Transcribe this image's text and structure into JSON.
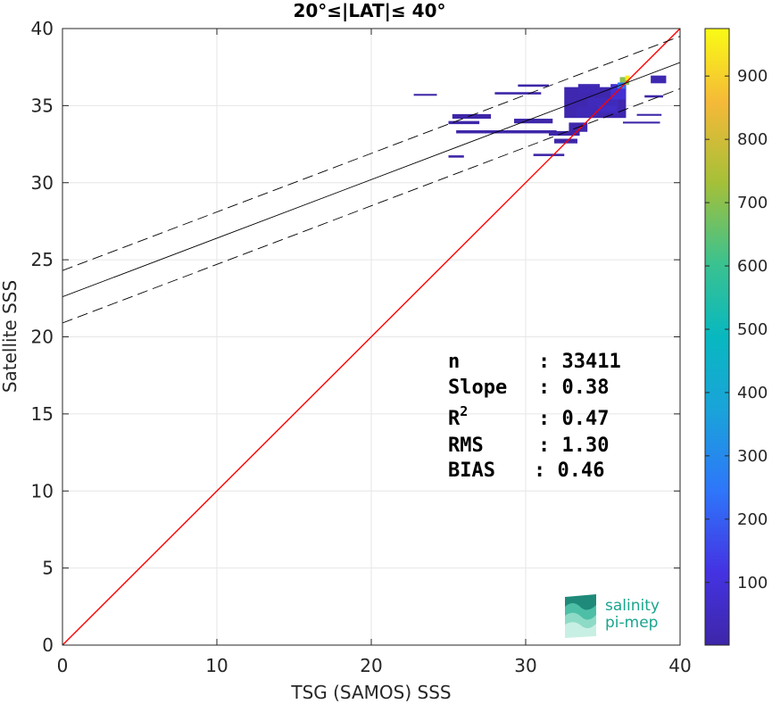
{
  "chart_data": {
    "type": "heatmap",
    "title": "20°≤|LAT|≤ 40°",
    "xlabel": "TSG (SAMOS) SSS",
    "ylabel": "Satellite SSS",
    "xlim": [
      0,
      40
    ],
    "ylim": [
      0,
      40
    ],
    "xticks": [
      "0",
      "10",
      "20",
      "30",
      "40"
    ],
    "yticks": [
      "0",
      "5",
      "10",
      "15",
      "20",
      "25",
      "30",
      "35",
      "40"
    ],
    "grid": true,
    "colorbar": {
      "min": 1,
      "max": 975,
      "ticks": [
        "100",
        "200",
        "300",
        "400",
        "500",
        "600",
        "700",
        "800",
        "900"
      ],
      "colormap": "parula"
    },
    "lines": [
      {
        "name": "1:1",
        "slope": 1.0,
        "intercept": 0.0,
        "color": "#ff0000",
        "style": "solid"
      },
      {
        "name": "fit",
        "slope": 0.38,
        "intercept": 22.6,
        "color": "#000000",
        "style": "solid"
      },
      {
        "name": "fit+",
        "slope": 0.38,
        "intercept": 24.3,
        "color": "#000000",
        "style": "dashed"
      },
      {
        "name": "fit-",
        "slope": 0.38,
        "intercept": 20.9,
        "color": "#000000",
        "style": "dashed"
      }
    ],
    "density_cells": [
      {
        "x": 34.5,
        "y": 35.2,
        "w": 4.0,
        "h": 2.0,
        "count": 15
      },
      {
        "x": 35.0,
        "y": 35.0,
        "w": 2.0,
        "h": 1.0,
        "count": 40
      },
      {
        "x": 36.0,
        "y": 35.9,
        "w": 1.0,
        "h": 1.0,
        "count": 90
      },
      {
        "x": 36.4,
        "y": 36.6,
        "w": 0.6,
        "h": 0.5,
        "count": 700
      },
      {
        "x": 36.6,
        "y": 36.8,
        "w": 0.3,
        "h": 0.3,
        "count": 950
      },
      {
        "x": 36.2,
        "y": 36.3,
        "w": 0.5,
        "h": 0.4,
        "count": 250
      },
      {
        "x": 34.0,
        "y": 34.6,
        "w": 1.5,
        "h": 0.7,
        "count": 30
      },
      {
        "x": 33.4,
        "y": 33.6,
        "w": 1.2,
        "h": 0.6,
        "count": 8
      },
      {
        "x": 32.5,
        "y": 33.2,
        "w": 2.0,
        "h": 0.3,
        "count": 3
      },
      {
        "x": 30.0,
        "y": 33.3,
        "w": 4.0,
        "h": 0.2,
        "count": 2
      },
      {
        "x": 27.0,
        "y": 33.3,
        "w": 3.0,
        "h": 0.2,
        "count": 2
      },
      {
        "x": 26.5,
        "y": 34.3,
        "w": 2.5,
        "h": 0.3,
        "count": 2
      },
      {
        "x": 30.5,
        "y": 34.0,
        "w": 2.5,
        "h": 0.3,
        "count": 3
      },
      {
        "x": 29.5,
        "y": 35.8,
        "w": 3.0,
        "h": 0.15,
        "count": 2
      },
      {
        "x": 30.5,
        "y": 36.3,
        "w": 2.0,
        "h": 0.15,
        "count": 2
      },
      {
        "x": 23.5,
        "y": 35.7,
        "w": 1.5,
        "h": 0.12,
        "count": 1
      },
      {
        "x": 26.0,
        "y": 33.9,
        "w": 2.0,
        "h": 0.2,
        "count": 1
      },
      {
        "x": 32.6,
        "y": 32.7,
        "w": 1.5,
        "h": 0.3,
        "count": 4
      },
      {
        "x": 31.5,
        "y": 31.8,
        "w": 2.0,
        "h": 0.15,
        "count": 1
      },
      {
        "x": 25.5,
        "y": 31.7,
        "w": 1.0,
        "h": 0.15,
        "count": 1
      },
      {
        "x": 38.3,
        "y": 35.6,
        "w": 1.2,
        "h": 0.15,
        "count": 2
      },
      {
        "x": 38.6,
        "y": 36.7,
        "w": 1.0,
        "h": 0.5,
        "count": 20
      },
      {
        "x": 38.0,
        "y": 34.4,
        "w": 1.6,
        "h": 0.12,
        "count": 1
      },
      {
        "x": 37.5,
        "y": 33.9,
        "w": 2.4,
        "h": 0.12,
        "count": 1
      },
      {
        "x": 35.3,
        "y": 34.8,
        "w": 1.2,
        "h": 0.4,
        "count": 60
      },
      {
        "x": 34.1,
        "y": 36.1,
        "w": 1.4,
        "h": 0.6,
        "count": 25
      }
    ],
    "annotations": {
      "n_label": "n",
      "n_value": ": 33411",
      "slope_label": "Slope",
      "slope_value": ": 0.38",
      "r2_label": "R",
      "r2_sup": "2",
      "r2_value": ": 0.47",
      "rms_label": "RMS",
      "rms_value": ": 1.30",
      "bias_label": "BIAS",
      "bias_value": ": 0.46"
    }
  },
  "logo": {
    "line1": "salinity",
    "line2": "pi-mep"
  }
}
